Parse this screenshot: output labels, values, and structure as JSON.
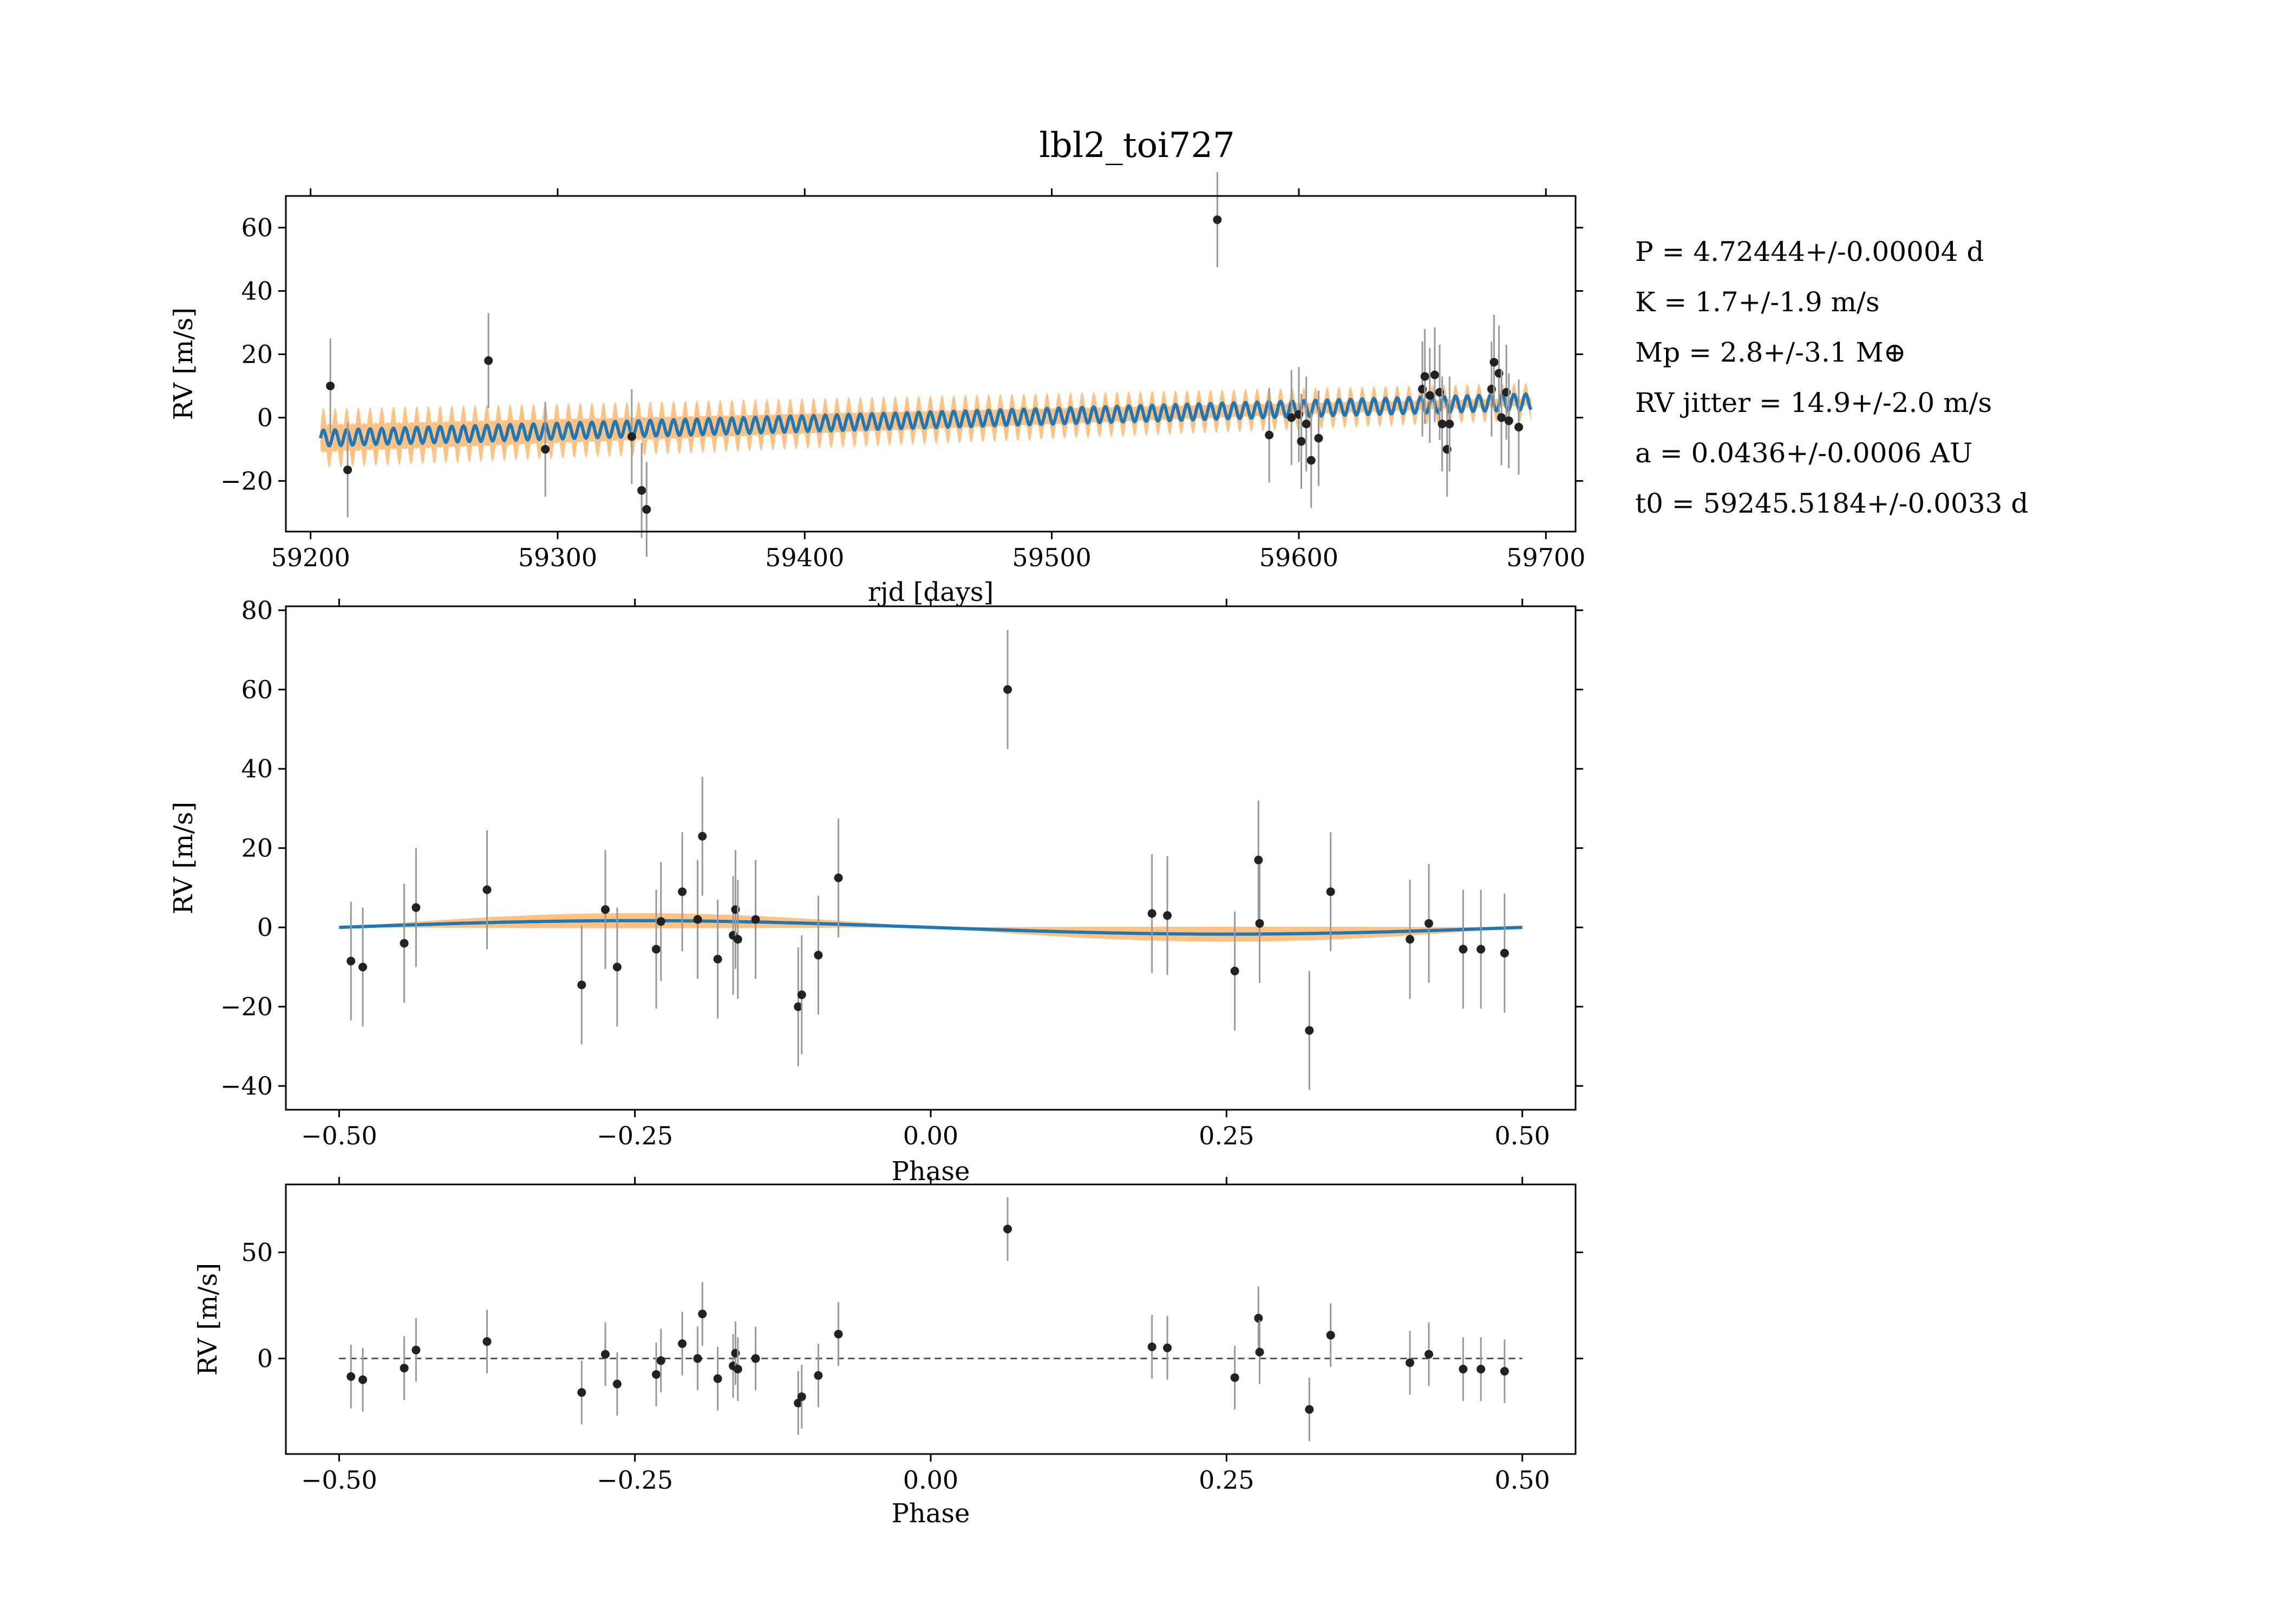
{
  "figure": {
    "title": "lbl2_toi727",
    "params": [
      "P = 4.72444+/-0.00004 d",
      "K = 1.7+/-1.9 m/s",
      "Mp = 2.8+/-3.1 M⊕",
      "RV jitter = 14.9+/-2.0 m/s",
      "a = 0.0436+/-0.0006 AU",
      "t0 = 59245.5184+/-0.0033 d"
    ]
  },
  "colors": {
    "model": "#1f77b4",
    "band": "#ffbb78",
    "points": "#222222",
    "errorbars": "#999999",
    "zero_line": "#555555"
  },
  "chart_data": [
    {
      "type": "scatter",
      "name": "rv-timeseries",
      "xlabel": "rjd [days]",
      "ylabel": "RV [m/s]",
      "xlim": [
        59190,
        59712
      ],
      "ylim": [
        -36,
        70
      ],
      "xticks": [
        59200,
        59300,
        59400,
        59500,
        59600,
        59700
      ],
      "yticks": [
        -20,
        0,
        20,
        40,
        60
      ],
      "model": {
        "period": 4.72444,
        "amplitude": 2.5,
        "trend_start": -6.5,
        "trend_end": 5.0,
        "x_start": 59204,
        "x_end": 59694,
        "band_halfwidth_start": 7,
        "band_halfwidth_end": 3.5
      },
      "points": [
        {
          "x": 59208,
          "y": 10
        },
        {
          "x": 59215,
          "y": -16.5
        },
        {
          "x": 59272,
          "y": 18
        },
        {
          "x": 59295,
          "y": -10
        },
        {
          "x": 59330,
          "y": -6
        },
        {
          "x": 59334,
          "y": -23
        },
        {
          "x": 59336,
          "y": -29
        },
        {
          "x": 59567,
          "y": 62.5
        },
        {
          "x": 59588,
          "y": -5.5
        },
        {
          "x": 59597,
          "y": 0
        },
        {
          "x": 59600,
          "y": 1
        },
        {
          "x": 59601,
          "y": -7.5
        },
        {
          "x": 59603,
          "y": -2
        },
        {
          "x": 59605,
          "y": -13.5
        },
        {
          "x": 59608,
          "y": -6.5
        },
        {
          "x": 59650,
          "y": 9
        },
        {
          "x": 59651,
          "y": 13
        },
        {
          "x": 59653,
          "y": 7
        },
        {
          "x": 59655,
          "y": 13.5
        },
        {
          "x": 59657,
          "y": 8
        },
        {
          "x": 59658,
          "y": -2
        },
        {
          "x": 59660,
          "y": -10
        },
        {
          "x": 59661,
          "y": -2
        },
        {
          "x": 59678,
          "y": 9
        },
        {
          "x": 59679,
          "y": 17.5
        },
        {
          "x": 59681,
          "y": 14
        },
        {
          "x": 59682,
          "y": 0
        },
        {
          "x": 59684,
          "y": 8
        },
        {
          "x": 59685,
          "y": -1
        },
        {
          "x": 59689,
          "y": -3
        }
      ]
    },
    {
      "type": "scatter",
      "name": "phase-folded",
      "xlabel": "Phase",
      "ylabel": "RV [m/s]",
      "xlim": [
        -0.545,
        0.545
      ],
      "ylim": [
        -46,
        81
      ],
      "xticks": [
        -0.5,
        -0.25,
        0.0,
        0.25,
        0.5
      ],
      "xtick_labels": [
        "−0.50",
        "−0.25",
        "0.00",
        "0.25",
        "0.50"
      ],
      "yticks": [
        -40,
        -20,
        0,
        20,
        40,
        60,
        80
      ],
      "ytick_labels": [
        "−40",
        "−20",
        "0",
        "20",
        "40",
        "60",
        "80"
      ],
      "model": {
        "amplitude": 1.7,
        "band_halfwidth": 1.9,
        "phase_offset": -0.25
      },
      "points": [
        {
          "x": -0.49,
          "y": -8.5
        },
        {
          "x": -0.48,
          "y": -10
        },
        {
          "x": -0.445,
          "y": -4
        },
        {
          "x": -0.435,
          "y": 5
        },
        {
          "x": -0.375,
          "y": 9.5
        },
        {
          "x": -0.295,
          "y": -14.5
        },
        {
          "x": -0.275,
          "y": 4.5
        },
        {
          "x": -0.265,
          "y": -10
        },
        {
          "x": -0.232,
          "y": -5.5
        },
        {
          "x": -0.228,
          "y": 1.5
        },
        {
          "x": -0.21,
          "y": 9
        },
        {
          "x": -0.197,
          "y": 2
        },
        {
          "x": -0.193,
          "y": 23
        },
        {
          "x": -0.18,
          "y": -8
        },
        {
          "x": -0.167,
          "y": -2
        },
        {
          "x": -0.165,
          "y": 4.5
        },
        {
          "x": -0.163,
          "y": -3
        },
        {
          "x": -0.148,
          "y": 2
        },
        {
          "x": -0.112,
          "y": -20
        },
        {
          "x": -0.109,
          "y": -17
        },
        {
          "x": -0.095,
          "y": -7
        },
        {
          "x": -0.078,
          "y": 12.5
        },
        {
          "x": 0.065,
          "y": 60
        },
        {
          "x": 0.187,
          "y": 3.5
        },
        {
          "x": 0.2,
          "y": 3
        },
        {
          "x": 0.257,
          "y": -11
        },
        {
          "x": 0.277,
          "y": 17
        },
        {
          "x": 0.278,
          "y": 1
        },
        {
          "x": 0.32,
          "y": -26
        },
        {
          "x": 0.338,
          "y": 9
        },
        {
          "x": 0.405,
          "y": -3
        },
        {
          "x": 0.421,
          "y": 1
        },
        {
          "x": 0.45,
          "y": -5.5
        },
        {
          "x": 0.465,
          "y": -5.5
        },
        {
          "x": 0.485,
          "y": -6.5
        }
      ]
    },
    {
      "type": "scatter",
      "name": "residuals",
      "xlabel": "Phase",
      "ylabel": "RV [m/s]",
      "xlim": [
        -0.545,
        0.545
      ],
      "ylim": [
        -45,
        82
      ],
      "xticks": [
        -0.5,
        -0.25,
        0.0,
        0.25,
        0.5
      ],
      "xtick_labels": [
        "−0.50",
        "−0.25",
        "0.00",
        "0.25",
        "0.50"
      ],
      "yticks": [
        0,
        50
      ],
      "ytick_labels": [
        "0",
        "50"
      ],
      "reference_line": 0,
      "points": [
        {
          "x": -0.49,
          "y": -8.5
        },
        {
          "x": -0.48,
          "y": -10
        },
        {
          "x": -0.445,
          "y": -4.5
        },
        {
          "x": -0.435,
          "y": 4
        },
        {
          "x": -0.375,
          "y": 8
        },
        {
          "x": -0.295,
          "y": -16
        },
        {
          "x": -0.275,
          "y": 2
        },
        {
          "x": -0.265,
          "y": -12
        },
        {
          "x": -0.232,
          "y": -7.5
        },
        {
          "x": -0.228,
          "y": -1
        },
        {
          "x": -0.21,
          "y": 7
        },
        {
          "x": -0.197,
          "y": 0
        },
        {
          "x": -0.193,
          "y": 21
        },
        {
          "x": -0.18,
          "y": -9.5
        },
        {
          "x": -0.167,
          "y": -3.5
        },
        {
          "x": -0.165,
          "y": 2.5
        },
        {
          "x": -0.163,
          "y": -5
        },
        {
          "x": -0.148,
          "y": 0
        },
        {
          "x": -0.112,
          "y": -21
        },
        {
          "x": -0.109,
          "y": -18
        },
        {
          "x": -0.095,
          "y": -8
        },
        {
          "x": -0.078,
          "y": 11.5
        },
        {
          "x": 0.065,
          "y": 61
        },
        {
          "x": 0.187,
          "y": 5.5
        },
        {
          "x": 0.2,
          "y": 5
        },
        {
          "x": 0.257,
          "y": -9
        },
        {
          "x": 0.277,
          "y": 19
        },
        {
          "x": 0.278,
          "y": 3
        },
        {
          "x": 0.32,
          "y": -24
        },
        {
          "x": 0.338,
          "y": 11
        },
        {
          "x": 0.405,
          "y": -2
        },
        {
          "x": 0.421,
          "y": 2
        },
        {
          "x": 0.45,
          "y": -5
        },
        {
          "x": 0.465,
          "y": -5
        },
        {
          "x": 0.485,
          "y": -6
        }
      ]
    }
  ]
}
